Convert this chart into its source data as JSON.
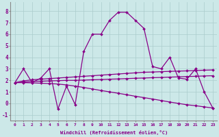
{
  "xlabel": "Windchill (Refroidissement éolien,°C)",
  "bg_color": "#cce8e8",
  "grid_color": "#aacccc",
  "line_color": "#880088",
  "xlim": [
    -0.5,
    23.5
  ],
  "ylim": [
    -1.5,
    8.8
  ],
  "xticks": [
    0,
    1,
    2,
    3,
    4,
    5,
    6,
    7,
    8,
    9,
    10,
    11,
    12,
    13,
    14,
    15,
    16,
    17,
    18,
    19,
    20,
    21,
    22,
    23
  ],
  "yticks": [
    -1,
    0,
    1,
    2,
    3,
    4,
    5,
    6,
    7,
    8
  ],
  "series": [
    [
      1.8,
      3.0,
      1.8,
      2.2,
      3.0,
      -0.5,
      1.5,
      -0.1,
      4.5,
      6.0,
      6.0,
      7.2,
      7.9,
      7.9,
      7.2,
      6.5,
      3.2,
      3.0,
      4.0,
      2.2,
      2.1,
      3.0,
      1.0,
      -0.4
    ],
    [
      1.8,
      1.95,
      2.05,
      2.1,
      2.15,
      2.2,
      2.25,
      2.3,
      2.35,
      2.4,
      2.45,
      2.5,
      2.55,
      2.6,
      2.65,
      2.7,
      2.72,
      2.75,
      2.78,
      2.8,
      2.82,
      2.85,
      2.88,
      2.9
    ],
    [
      1.8,
      1.85,
      1.9,
      1.92,
      1.95,
      1.97,
      2.0,
      2.0,
      2.02,
      2.05,
      2.07,
      2.1,
      2.12,
      2.15,
      2.18,
      2.2,
      2.23,
      2.25,
      2.28,
      2.3,
      2.33,
      2.35,
      2.38,
      2.4
    ],
    [
      1.8,
      1.8,
      1.78,
      1.75,
      1.72,
      1.68,
      1.6,
      1.5,
      1.38,
      1.25,
      1.12,
      1.0,
      0.88,
      0.75,
      0.62,
      0.5,
      0.38,
      0.25,
      0.12,
      0.0,
      -0.12,
      -0.2,
      -0.3,
      -0.4
    ]
  ]
}
